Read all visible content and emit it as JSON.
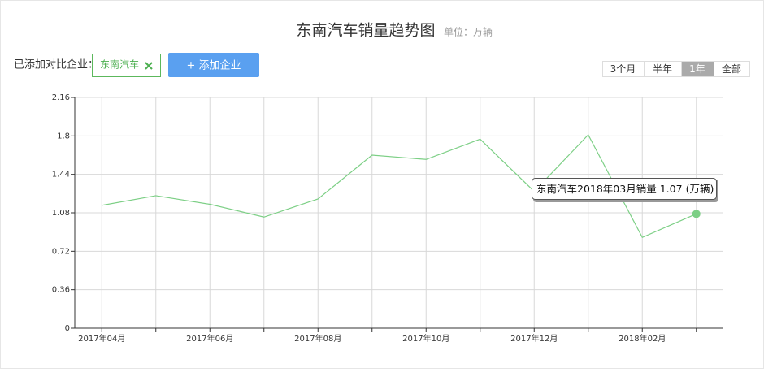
{
  "header": {
    "title": "东南汽车销量趋势图",
    "unit": "单位：万辆"
  },
  "compare": {
    "label": "已添加对比企业：",
    "tags": [
      "东南汽车"
    ],
    "add_button": "+ 添加企业"
  },
  "ranges": {
    "options": [
      "3个月",
      "半年",
      "1年",
      "全部"
    ],
    "active": 2
  },
  "chart_data": {
    "type": "line",
    "categories": [
      "2017年04月",
      null,
      "2017年06月",
      null,
      "2017年08月",
      null,
      "2017年10月",
      null,
      "2017年12月",
      null,
      "2018年02月",
      null
    ],
    "series": [
      {
        "color": "#7ccf85",
        "values": [
          1.15,
          1.24,
          1.16,
          1.04,
          1.21,
          1.62,
          1.58,
          1.77,
          1.28,
          1.81,
          0.85,
          1.07
        ]
      }
    ],
    "ylim": [
      0,
      2.16
    ],
    "yticks": [
      0,
      0.36,
      0.72,
      1.08,
      1.44,
      1.8,
      2.16
    ],
    "grid": true,
    "tooltip": {
      "label": "东南汽车2018年03月销量",
      "unit": "(万辆)"
    }
  }
}
